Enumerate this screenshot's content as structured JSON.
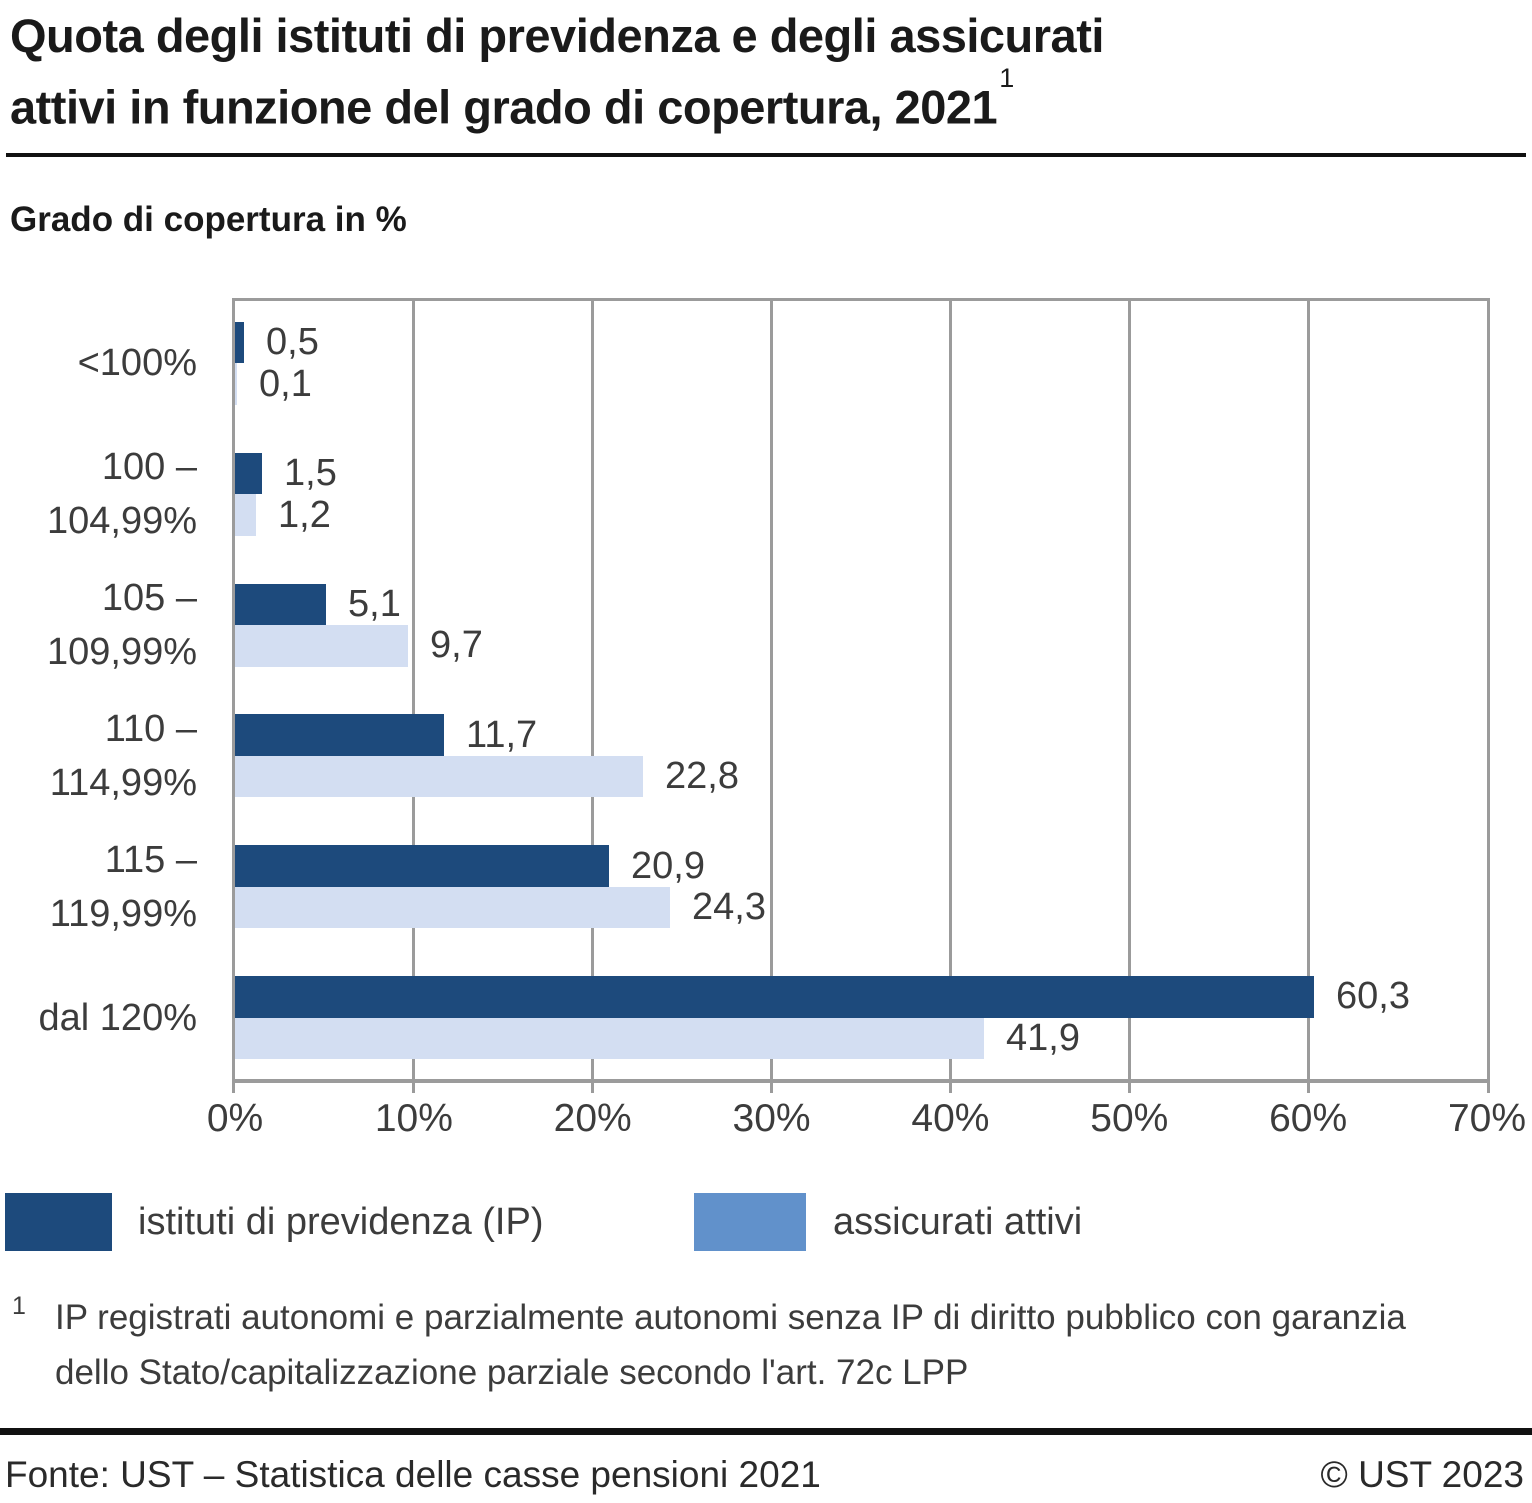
{
  "title": {
    "line1": "Quota degli istituti di previdenza e degli assicurati",
    "line2": "attivi in funzione del grado di copertura, 2021",
    "superscript": "1"
  },
  "subtitle": "Grado di copertura in %",
  "chart_data": {
    "type": "bar",
    "orientation": "horizontal",
    "title": "Quota degli istituti di previdenza e degli assicurati attivi in funzione del grado di copertura, 2021",
    "axis_title": "Grado di copertura in %",
    "categories": [
      "<100%",
      "100 – 104,99%",
      "105 – 109,99%",
      "110 – 114,99%",
      "115 – 119,99%",
      "dal 120%"
    ],
    "categories_display_lines": [
      [
        "<100%"
      ],
      [
        "100 –",
        "104,99%"
      ],
      [
        "105 –",
        "109,99%"
      ],
      [
        "110 –",
        "114,99%"
      ],
      [
        "115 –",
        "119,99%"
      ],
      [
        "dal 120%"
      ]
    ],
    "series": [
      {
        "name": "istituti di previdenza (IP)",
        "color": "#1d4a7c",
        "legend_color": "#1d4a7c",
        "values": [
          0.5,
          1.5,
          5.1,
          11.7,
          20.9,
          60.3
        ],
        "labels": [
          "0,5",
          "1,5",
          "5,1",
          "11,7",
          "20,9",
          "60,3"
        ]
      },
      {
        "name": "assicurati attivi",
        "color": "#d3def2",
        "legend_color": "#6191cb",
        "values": [
          0.1,
          1.2,
          9.7,
          22.8,
          24.3,
          41.9
        ],
        "labels": [
          "0,1",
          "1,2",
          "9,7",
          "22,8",
          "24,3",
          "41,9"
        ]
      }
    ],
    "x_ticks": [
      "0%",
      "10%",
      "20%",
      "30%",
      "40%",
      "50%",
      "60%",
      "70%"
    ],
    "x_tick_values": [
      0,
      10,
      20,
      30,
      40,
      50,
      60,
      70
    ],
    "xlim": [
      0,
      70
    ],
    "grid": true,
    "grid_color": "#9b9b9b",
    "legend_position": "bottom"
  },
  "footnote": {
    "marker": "1",
    "text": "IP registrati autonomi e parzialmente autonomi senza IP di diritto pubblico con garanzia\ndello Stato/capitalizzazione parziale secondo l'art. 72c LPP"
  },
  "footer": {
    "source": "Fonte: UST – Statistica delle casse pensioni 2021",
    "copyright": "© UST 2023"
  }
}
